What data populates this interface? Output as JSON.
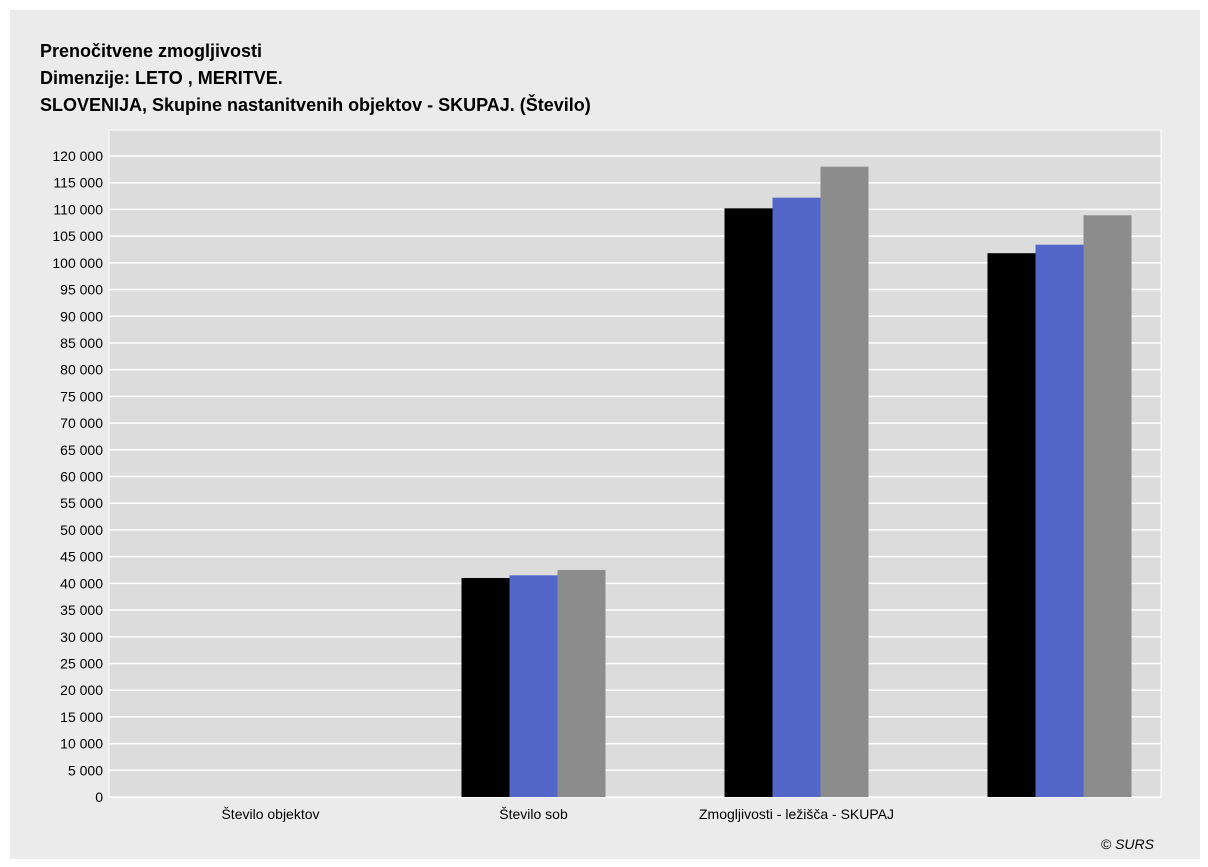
{
  "chart_data": {
    "type": "bar",
    "title_lines": [
      "Prenočitvene zmogljivosti",
      "Dimenzije: LETO , MERITVE.",
      "SLOVENIJA, Skupine nastanitvenih objektov - SKUPAJ. (Število)"
    ],
    "categories": [
      "Število objektov",
      "Število sob",
      "Zmogljivosti - ležišča - SKUPAJ",
      ""
    ],
    "series": [
      {
        "color": "#000000",
        "values": [
          0,
          41000,
          110200,
          101800
        ]
      },
      {
        "color": "#5367c9",
        "values": [
          0,
          41500,
          112200,
          103400
        ]
      },
      {
        "color": "#8c8c8c",
        "values": [
          0,
          42500,
          118000,
          108900
        ]
      }
    ],
    "ylim": [
      0,
      120000
    ],
    "y_ticks": [
      "0",
      "5 000",
      "10 000",
      "15 000",
      "20 000",
      "25 000",
      "30 000",
      "35 000",
      "40 000",
      "45 000",
      "50 000",
      "55 000",
      "60 000",
      "65 000",
      "70 000",
      "75 000",
      "80 000",
      "85 000",
      "90 000",
      "95 000",
      "100 000",
      "105 000",
      "110 000",
      "115 000",
      "120 000"
    ],
    "grid": true,
    "legend": "none"
  },
  "footer": {
    "copyright": "© SURS"
  },
  "colors": {
    "plot_background": "#dcdcdc",
    "frame_background": "#ebebeb",
    "gridline": "#ffffff"
  }
}
